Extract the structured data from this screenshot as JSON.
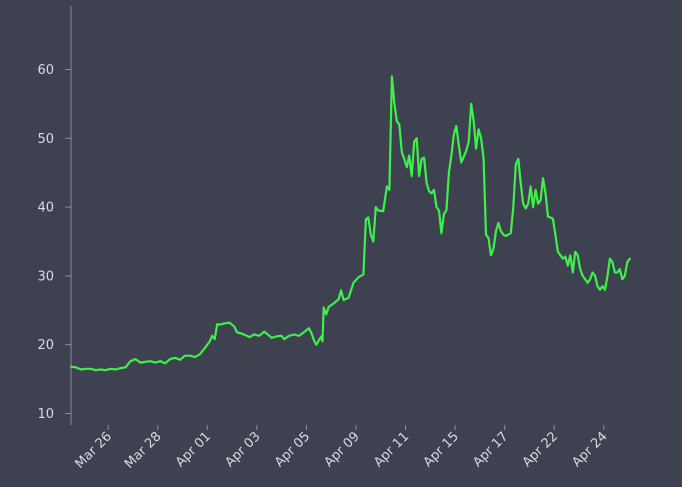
{
  "chart_data": {
    "type": "line",
    "title": "",
    "xlabel": "",
    "ylabel": "",
    "ylim": [
      9,
      68
    ],
    "y_ticks": [
      10,
      20,
      30,
      40,
      50,
      60
    ],
    "x_tick_labels": [
      "Mar 26",
      "Mar 28",
      "Apr 01",
      "Apr 03",
      "Apr 05",
      "Apr 09",
      "Apr 11",
      "Apr 15",
      "Apr 17",
      "Apr 22",
      "Apr 24"
    ],
    "x_tick_positions": [
      1.5,
      3.5,
      5.5,
      7.5,
      9.5,
      11.5,
      13.5,
      15.5,
      17.5,
      19.5,
      21.5
    ],
    "x_range": [
      0,
      22.6
    ],
    "grid": false,
    "line_color": "#3ef04a",
    "background_color": "#3d4150",
    "series": [
      {
        "values": [
          [
            0.0,
            16.8
          ],
          [
            0.2,
            16.7
          ],
          [
            0.4,
            16.4
          ],
          [
            0.6,
            16.5
          ],
          [
            0.8,
            16.5
          ],
          [
            1.0,
            16.3
          ],
          [
            1.2,
            16.4
          ],
          [
            1.4,
            16.3
          ],
          [
            1.6,
            16.5
          ],
          [
            1.8,
            16.4
          ],
          [
            2.0,
            16.6
          ],
          [
            2.2,
            16.7
          ],
          [
            2.4,
            17.6
          ],
          [
            2.6,
            17.9
          ],
          [
            2.8,
            17.4
          ],
          [
            3.0,
            17.5
          ],
          [
            3.2,
            17.6
          ],
          [
            3.4,
            17.4
          ],
          [
            3.6,
            17.6
          ],
          [
            3.8,
            17.3
          ],
          [
            4.0,
            17.9
          ],
          [
            4.2,
            18.1
          ],
          [
            4.4,
            17.8
          ],
          [
            4.6,
            18.4
          ],
          [
            4.8,
            18.4
          ],
          [
            5.0,
            18.2
          ],
          [
            5.2,
            18.6
          ],
          [
            5.4,
            19.5
          ],
          [
            5.6,
            20.5
          ],
          [
            5.7,
            21.3
          ],
          [
            5.8,
            20.8
          ],
          [
            5.9,
            23.0
          ],
          [
            6.0,
            22.9
          ],
          [
            6.2,
            23.1
          ],
          [
            6.4,
            23.2
          ],
          [
            6.6,
            22.6
          ],
          [
            6.7,
            21.8
          ],
          [
            6.9,
            21.6
          ],
          [
            7.1,
            21.3
          ],
          [
            7.2,
            21.1
          ],
          [
            7.4,
            21.5
          ],
          [
            7.6,
            21.3
          ],
          [
            7.8,
            21.9
          ],
          [
            7.9,
            21.6
          ],
          [
            8.1,
            21.0
          ],
          [
            8.3,
            21.2
          ],
          [
            8.5,
            21.3
          ],
          [
            8.6,
            20.8
          ],
          [
            8.8,
            21.3
          ],
          [
            9.0,
            21.5
          ],
          [
            9.2,
            21.3
          ],
          [
            9.4,
            21.8
          ],
          [
            9.6,
            22.4
          ],
          [
            9.7,
            21.7
          ],
          [
            9.8,
            20.7
          ],
          [
            9.9,
            20.0
          ],
          [
            10.0,
            20.6
          ],
          [
            10.1,
            21.2
          ],
          [
            10.15,
            20.5
          ],
          [
            10.2,
            25.4
          ],
          [
            10.3,
            24.4
          ],
          [
            10.4,
            25.5
          ],
          [
            10.6,
            26.0
          ],
          [
            10.8,
            26.6
          ],
          [
            10.9,
            27.9
          ],
          [
            11.0,
            26.5
          ],
          [
            11.2,
            26.8
          ],
          [
            11.4,
            29.0
          ],
          [
            11.6,
            29.8
          ],
          [
            11.8,
            30.2
          ],
          [
            11.9,
            38.2
          ],
          [
            12.0,
            38.5
          ],
          [
            12.1,
            36.0
          ],
          [
            12.2,
            35.0
          ],
          [
            12.3,
            40.0
          ],
          [
            12.4,
            39.5
          ],
          [
            12.6,
            39.4
          ],
          [
            12.75,
            43.0
          ],
          [
            12.85,
            42.5
          ],
          [
            12.95,
            59.0
          ],
          [
            13.05,
            55.0
          ],
          [
            13.15,
            52.5
          ],
          [
            13.25,
            52.0
          ],
          [
            13.35,
            48.0
          ],
          [
            13.45,
            47.0
          ],
          [
            13.55,
            45.8
          ],
          [
            13.65,
            47.5
          ],
          [
            13.75,
            44.5
          ],
          [
            13.85,
            49.5
          ],
          [
            13.95,
            50.0
          ],
          [
            14.05,
            44.5
          ],
          [
            14.15,
            47.0
          ],
          [
            14.25,
            47.2
          ],
          [
            14.35,
            43.5
          ],
          [
            14.45,
            42.3
          ],
          [
            14.55,
            42.0
          ],
          [
            14.65,
            42.5
          ],
          [
            14.75,
            40.0
          ],
          [
            14.85,
            39.5
          ],
          [
            14.95,
            36.2
          ],
          [
            15.05,
            39.0
          ],
          [
            15.15,
            39.5
          ],
          [
            15.25,
            45.0
          ],
          [
            15.35,
            47.5
          ],
          [
            15.45,
            50.5
          ],
          [
            15.55,
            51.8
          ],
          [
            15.65,
            49.0
          ],
          [
            15.75,
            46.5
          ],
          [
            15.85,
            47.3
          ],
          [
            15.95,
            48.2
          ],
          [
            16.05,
            49.5
          ],
          [
            16.15,
            55.0
          ],
          [
            16.25,
            52.5
          ],
          [
            16.35,
            48.5
          ],
          [
            16.45,
            51.3
          ],
          [
            16.55,
            50.0
          ],
          [
            16.65,
            47.0
          ],
          [
            16.75,
            36.0
          ],
          [
            16.85,
            35.5
          ],
          [
            16.95,
            33.0
          ],
          [
            17.05,
            34.0
          ],
          [
            17.15,
            36.5
          ],
          [
            17.25,
            37.7
          ],
          [
            17.35,
            36.5
          ],
          [
            17.45,
            36.0
          ],
          [
            17.55,
            35.8
          ],
          [
            17.65,
            36.0
          ],
          [
            17.75,
            36.2
          ],
          [
            17.85,
            40.0
          ],
          [
            17.95,
            46.2
          ],
          [
            18.05,
            47.0
          ],
          [
            18.15,
            43.5
          ],
          [
            18.25,
            40.5
          ],
          [
            18.35,
            39.8
          ],
          [
            18.45,
            40.5
          ],
          [
            18.55,
            43.0
          ],
          [
            18.65,
            40.0
          ],
          [
            18.75,
            42.5
          ],
          [
            18.85,
            40.5
          ],
          [
            18.95,
            41.0
          ],
          [
            19.05,
            44.2
          ],
          [
            19.15,
            42.0
          ],
          [
            19.25,
            38.6
          ],
          [
            19.35,
            38.5
          ],
          [
            19.45,
            38.3
          ],
          [
            19.55,
            36.0
          ],
          [
            19.65,
            33.5
          ],
          [
            19.75,
            33.0
          ],
          [
            19.85,
            32.5
          ],
          [
            19.95,
            32.8
          ],
          [
            20.05,
            31.5
          ],
          [
            20.15,
            33.0
          ],
          [
            20.25,
            30.5
          ],
          [
            20.35,
            33.5
          ],
          [
            20.45,
            33.0
          ],
          [
            20.55,
            31.0
          ],
          [
            20.65,
            30.0
          ],
          [
            20.75,
            29.5
          ],
          [
            20.85,
            29.0
          ],
          [
            20.95,
            29.5
          ],
          [
            21.05,
            30.5
          ],
          [
            21.15,
            30.0
          ],
          [
            21.25,
            28.5
          ],
          [
            21.35,
            28.0
          ],
          [
            21.45,
            28.5
          ],
          [
            21.55,
            28.0
          ],
          [
            21.65,
            30.0
          ],
          [
            21.75,
            32.5
          ],
          [
            21.85,
            32.0
          ],
          [
            21.95,
            30.5
          ],
          [
            22.05,
            30.5
          ],
          [
            22.15,
            31.0
          ],
          [
            22.25,
            29.5
          ],
          [
            22.35,
            30.0
          ],
          [
            22.45,
            32.0
          ],
          [
            22.55,
            32.5
          ]
        ]
      }
    ]
  }
}
